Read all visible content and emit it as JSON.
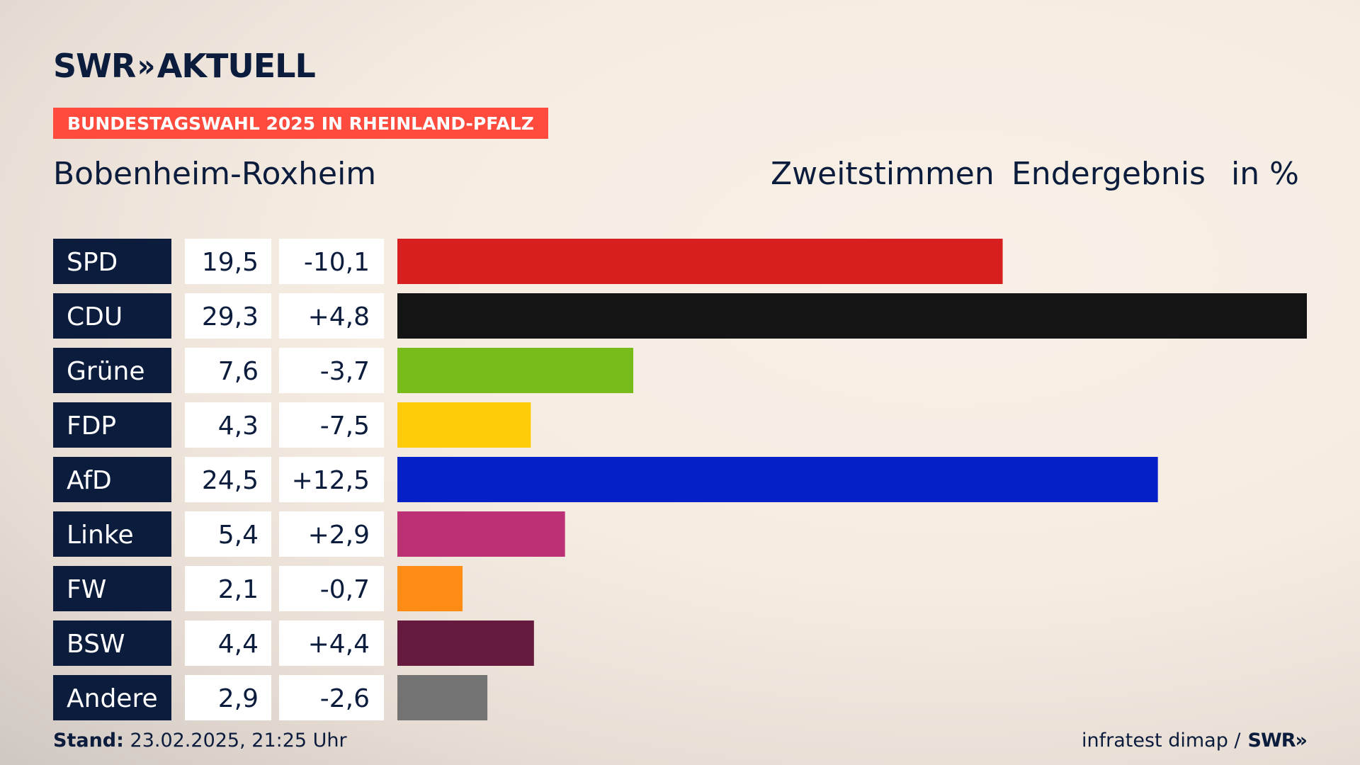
{
  "brand": {
    "logo_word": "SWR",
    "logo_chevron": "»",
    "logo_suffix": "AKTUELL",
    "color_navy": "#0c1c3d"
  },
  "badge": {
    "text": "BUNDESTAGSWAHL 2025 IN RHEINLAND-PFALZ",
    "color": "#ff4b3e"
  },
  "place": "Bobenheim-Roxheim",
  "header": {
    "vote_type": "Zweitstimmen",
    "result_type": "Endergebnis",
    "unit": "in %"
  },
  "chart_data": {
    "type": "bar",
    "orientation": "horizontal",
    "categories": [
      "SPD",
      "CDU",
      "Grüne",
      "FDP",
      "AfD",
      "Linke",
      "FW",
      "BSW",
      "Andere"
    ],
    "values": [
      19.5,
      29.3,
      7.6,
      4.3,
      24.5,
      5.4,
      2.1,
      4.4,
      2.9
    ],
    "value_labels": [
      "19,5",
      "29,3",
      "7,6",
      "4,3",
      "24,5",
      "5,4",
      "2,1",
      "4,4",
      "2,9"
    ],
    "change_labels": [
      "-10,1",
      "+4,8",
      "-3,7",
      "-7,5",
      "+12,5",
      "+2,9",
      "-0,7",
      "+4,4",
      "-2,6"
    ],
    "colors": [
      "#d81f1f",
      "#141414",
      "#78bc1b",
      "#ffcc09",
      "#0321c7",
      "#bc3075",
      "#ff8c15",
      "#661a3e",
      "#737373"
    ],
    "xlim": [
      0,
      29.3
    ],
    "grid": false
  },
  "footer": {
    "stand_label": "Stand:",
    "stand_value": "23.02.2025, 21:25 Uhr",
    "source": "infratest dimap /",
    "source_logo": "SWR»"
  }
}
